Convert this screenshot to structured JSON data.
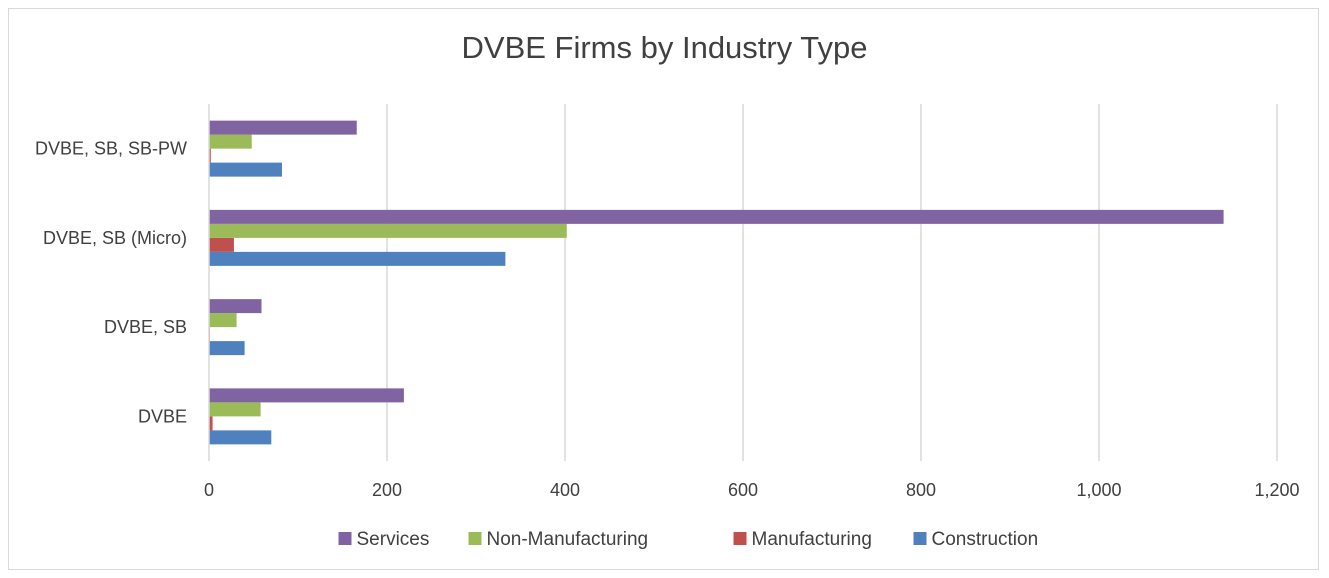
{
  "chart_data": {
    "type": "bar",
    "orientation": "horizontal",
    "title": "DVBE Firms by Industry Type",
    "categories": [
      "DVBE",
      "DVBE, SB",
      "DVBE, SB (Micro)",
      "DVBE, SB, SB-PW"
    ],
    "series": [
      {
        "name": "Construction",
        "color": "#4e81bd",
        "values": [
          70,
          40,
          333,
          82
        ]
      },
      {
        "name": "Manufacturing",
        "color": "#c0504d",
        "values": [
          4,
          1,
          28,
          2
        ]
      },
      {
        "name": "Non-Manufacturing",
        "color": "#9bbb59",
        "values": [
          58,
          31,
          402,
          48
        ]
      },
      {
        "name": "Services",
        "color": "#8064a2",
        "values": [
          219,
          59,
          1140,
          166
        ]
      }
    ],
    "xlim": [
      0,
      1200
    ],
    "x_ticks": [
      0,
      200,
      400,
      600,
      800,
      1000,
      1200
    ],
    "x_tick_labels": [
      "0",
      "200",
      "400",
      "600",
      "800",
      "1,000",
      "1,200"
    ],
    "grid": "vertical major gridlines",
    "legend_position": "bottom",
    "legend_order": [
      "Services",
      "Non-Manufacturing",
      "Manufacturing",
      "Construction"
    ],
    "xlabel": "",
    "ylabel": ""
  }
}
